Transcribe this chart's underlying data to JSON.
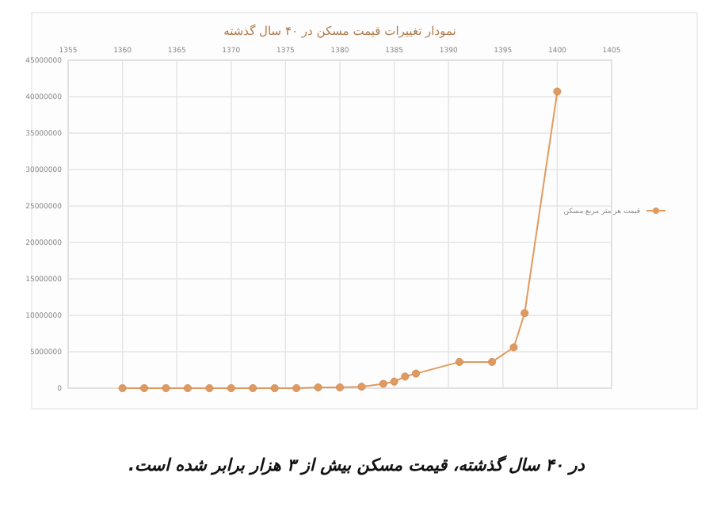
{
  "chart_data": {
    "type": "line",
    "title": "نمودار تغییرات قیمت مسکن در ۴۰ سال گذشته",
    "annotations": [
      "در ۴۰ سال گذشته، قیمت مسکن بیش از ۳ هزار برابر شده است."
    ],
    "series": [
      {
        "name": "قیمت هر متر مربع مسکن",
        "color": "#e09a5f",
        "x": [
          1360,
          1362,
          1364,
          1366,
          1368,
          1370,
          1372,
          1374,
          1376,
          1378,
          1380,
          1382,
          1384,
          1385,
          1386,
          1387,
          1391,
          1394,
          1396,
          1397,
          1400
        ],
        "values": [
          0,
          0,
          0,
          0,
          0,
          0,
          0,
          0,
          0,
          100000,
          100000,
          200000,
          600000,
          900000,
          1600000,
          2000000,
          3600000,
          3600000,
          5600000,
          10300000,
          40700000
        ]
      }
    ],
    "xlim": [
      1355,
      1405
    ],
    "xticks": [
      1355,
      1360,
      1365,
      1370,
      1375,
      1380,
      1385,
      1390,
      1395,
      1400,
      1405
    ],
    "ylim": [
      0,
      45000000
    ],
    "yticks": [
      0,
      5000000,
      10000000,
      15000000,
      20000000,
      25000000,
      30000000,
      35000000,
      40000000,
      45000000
    ],
    "grid": true,
    "legend": "right",
    "marker": "circle",
    "line_style": "solid"
  }
}
